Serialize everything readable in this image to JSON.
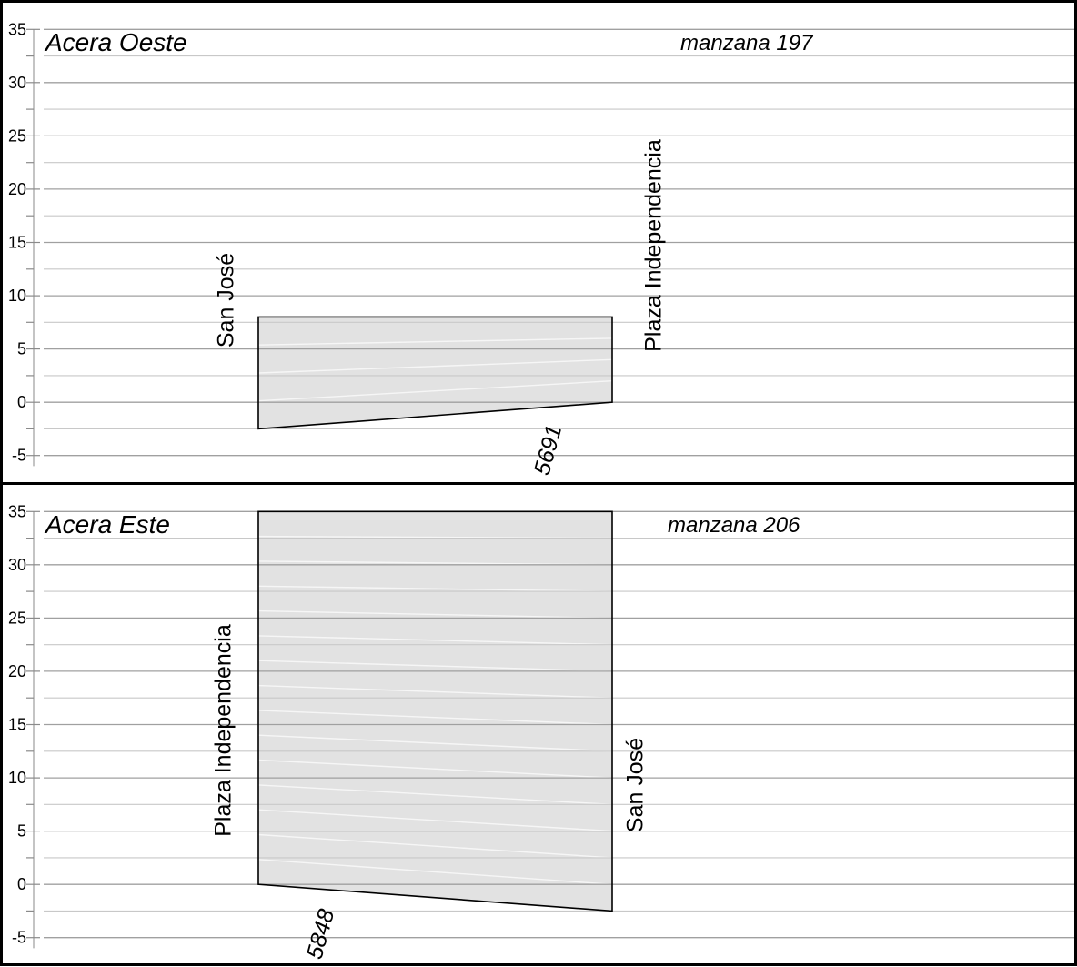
{
  "colors": {
    "profile_fill": "#e2e2e2",
    "profile_outline": "#000000",
    "grid_major": "#a0a0a0",
    "grid_minor": "#c8c8c8",
    "axis": "#8a8a8a",
    "text": "#000000",
    "streak": "#ffffff"
  },
  "chart_data": [
    {
      "type": "area",
      "title": "Acera Oeste",
      "block_label": "manzana 197",
      "parcel_label": "5691",
      "street_left": "San José",
      "street_right": "Plaza Independencia",
      "ylim": [
        -7.5,
        37.5
      ],
      "ytick_labels": [
        35,
        30,
        25,
        20,
        15,
        10,
        5,
        0,
        -5
      ],
      "grid_step": 2.5,
      "grid": "horizontal",
      "legend": "none",
      "profile": {
        "top_height": 8,
        "base_left": -2.5,
        "base_right": 0
      }
    },
    {
      "type": "area",
      "title": "Acera Este",
      "block_label": "manzana 206",
      "parcel_label": "5848",
      "street_left": "Plaza Independencia",
      "street_right": "San José",
      "ylim": [
        -7.5,
        37.5
      ],
      "ytick_labels": [
        35,
        30,
        25,
        20,
        15,
        10,
        5,
        0,
        -5
      ],
      "grid_step": 2.5,
      "grid": "horizontal",
      "legend": "none",
      "profile": {
        "top_height": 35,
        "base_left": 0,
        "base_right": -2.5
      }
    }
  ]
}
